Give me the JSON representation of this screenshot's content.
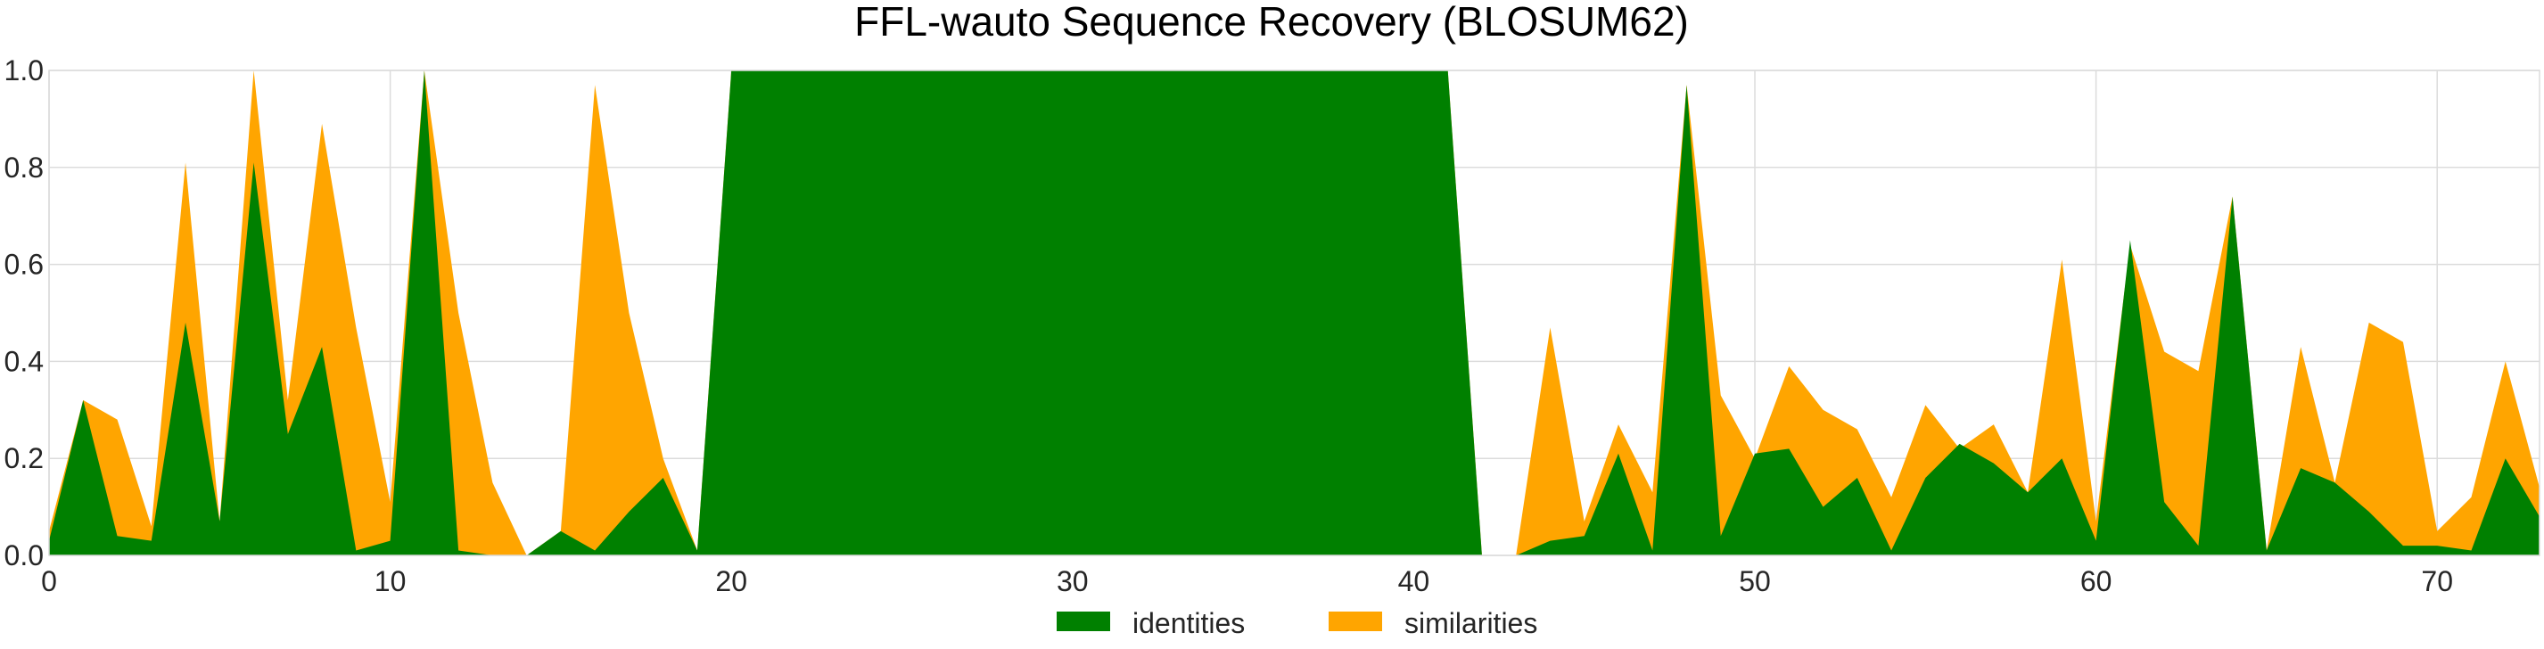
{
  "chart_data": {
    "type": "area",
    "title": "FFL-wauto Sequence Recovery (BLOSUM62)",
    "xlabel": "",
    "ylabel": "",
    "xlim": [
      0,
      73
    ],
    "ylim": [
      0,
      1.0
    ],
    "xticks": [
      0,
      10,
      20,
      30,
      40,
      50,
      60,
      70
    ],
    "yticks": [
      0.0,
      0.2,
      0.4,
      0.6,
      0.8,
      1.0
    ],
    "grid": true,
    "legend_position": "bottom-center",
    "x": [
      0,
      1,
      2,
      3,
      4,
      5,
      6,
      7,
      8,
      9,
      10,
      11,
      12,
      13,
      14,
      15,
      16,
      17,
      18,
      19,
      20,
      21,
      22,
      23,
      24,
      25,
      26,
      27,
      28,
      29,
      30,
      31,
      32,
      33,
      34,
      35,
      36,
      37,
      38,
      39,
      40,
      41,
      42,
      43,
      44,
      45,
      46,
      47,
      48,
      49,
      50,
      51,
      52,
      53,
      54,
      55,
      56,
      57,
      58,
      59,
      60,
      61,
      62,
      63,
      64,
      65,
      66,
      67,
      68,
      69,
      70,
      71,
      72,
      73
    ],
    "series": [
      {
        "name": "similarities",
        "color": "#ffa500",
        "values": [
          0.05,
          0.32,
          0.28,
          0.06,
          0.81,
          0.07,
          1.0,
          0.32,
          0.89,
          0.47,
          0.11,
          1.0,
          0.5,
          0.15,
          0.0,
          0.05,
          0.97,
          0.5,
          0.2,
          0.01,
          1.0,
          1.0,
          1.0,
          1.0,
          1.0,
          1.0,
          1.0,
          1.0,
          1.0,
          1.0,
          1.0,
          1.0,
          1.0,
          1.0,
          1.0,
          1.0,
          1.0,
          1.0,
          1.0,
          1.0,
          1.0,
          1.0,
          0.0,
          0.0,
          0.47,
          0.07,
          0.27,
          0.13,
          0.97,
          0.33,
          0.2,
          0.39,
          0.3,
          0.26,
          0.12,
          0.31,
          0.22,
          0.27,
          0.13,
          0.61,
          0.07,
          0.64,
          0.42,
          0.38,
          0.74,
          0.01,
          0.43,
          0.15,
          0.48,
          0.44,
          0.05,
          0.12,
          0.4,
          0.14
        ]
      },
      {
        "name": "identities",
        "color": "#008000",
        "values": [
          0.03,
          0.32,
          0.04,
          0.03,
          0.48,
          0.07,
          0.81,
          0.25,
          0.43,
          0.01,
          0.03,
          1.0,
          0.01,
          0.0,
          0.0,
          0.05,
          0.01,
          0.09,
          0.16,
          0.01,
          1.0,
          1.0,
          1.0,
          1.0,
          1.0,
          1.0,
          1.0,
          1.0,
          1.0,
          1.0,
          1.0,
          1.0,
          1.0,
          1.0,
          1.0,
          1.0,
          1.0,
          1.0,
          1.0,
          1.0,
          1.0,
          1.0,
          0.0,
          0.0,
          0.03,
          0.04,
          0.21,
          0.01,
          0.97,
          0.04,
          0.21,
          0.22,
          0.1,
          0.16,
          0.01,
          0.16,
          0.23,
          0.19,
          0.13,
          0.2,
          0.03,
          0.65,
          0.11,
          0.02,
          0.74,
          0.01,
          0.18,
          0.15,
          0.09,
          0.02,
          0.02,
          0.01,
          0.2,
          0.08
        ]
      }
    ],
    "legend": [
      {
        "label": "identities",
        "color": "#008000"
      },
      {
        "label": "similarities",
        "color": "#ffa500"
      }
    ]
  }
}
